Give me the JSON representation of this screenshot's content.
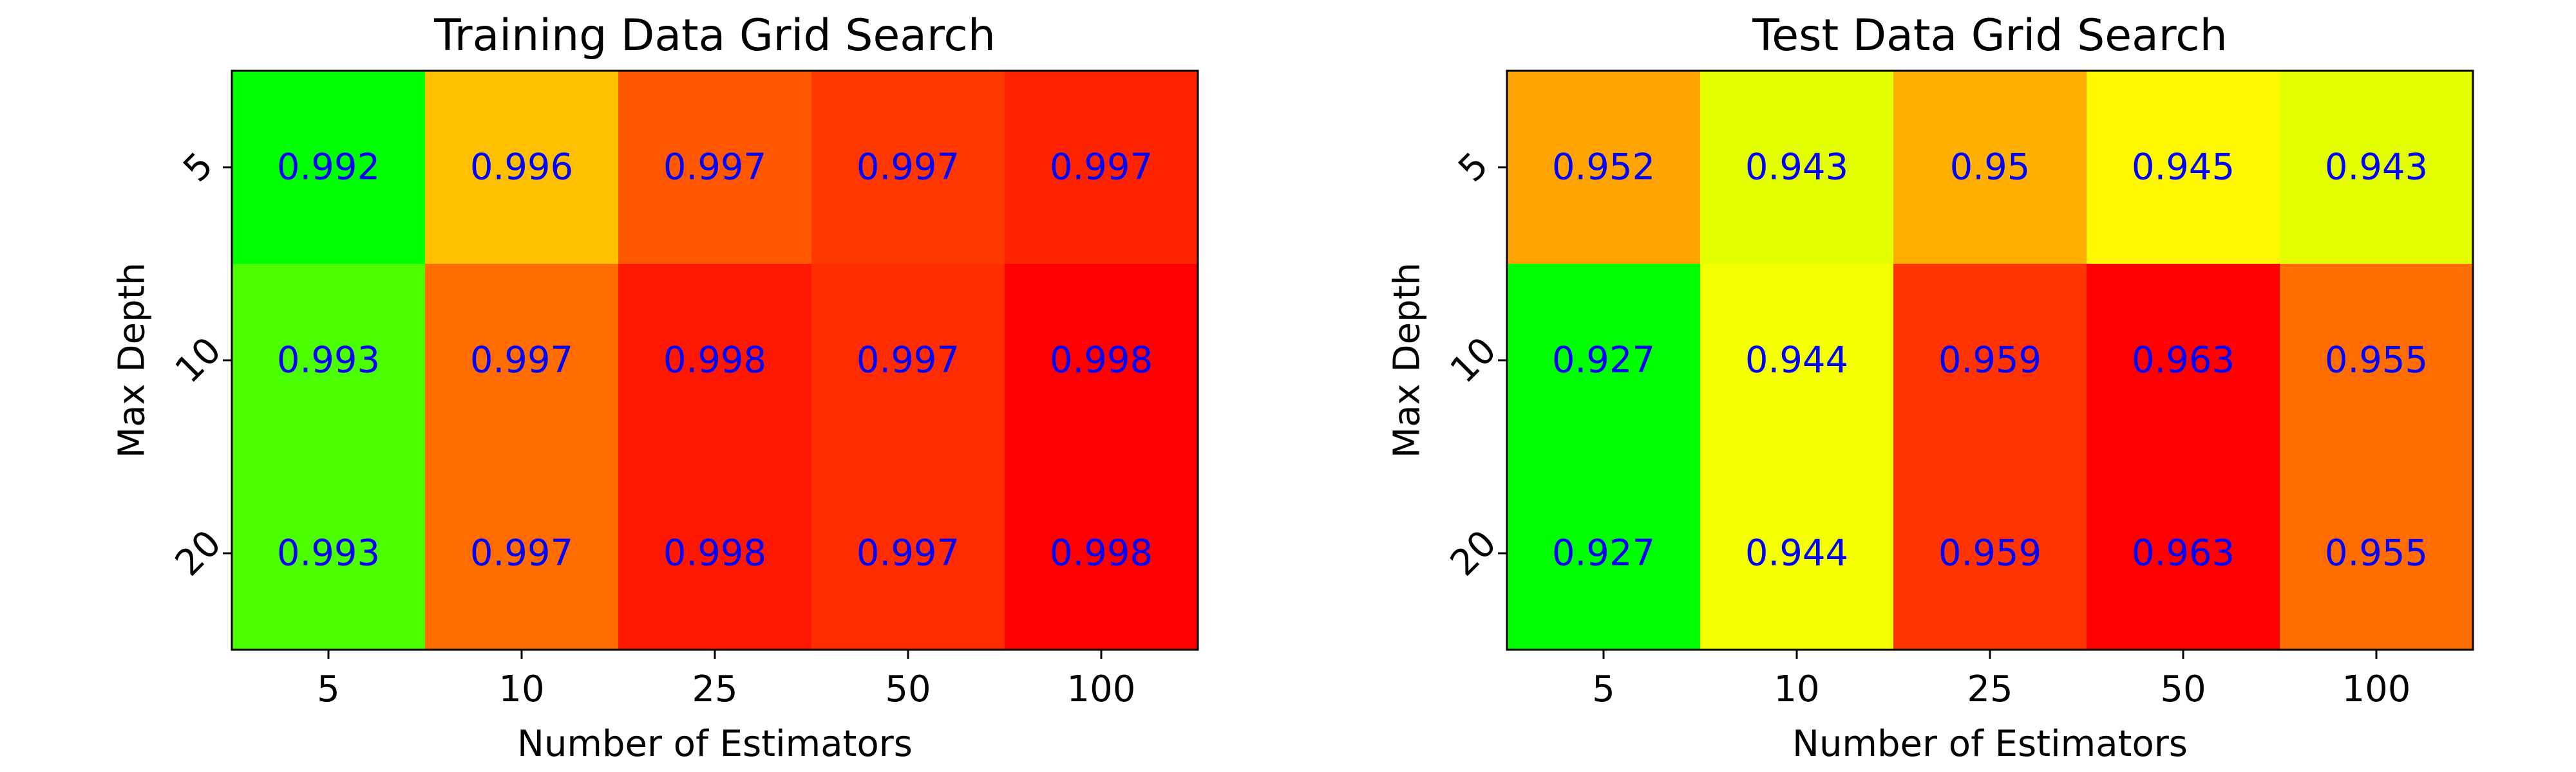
{
  "chart_data": [
    {
      "type": "heatmap",
      "title": "Training Data Grid Search",
      "xlabel": "Number of Estimators",
      "ylabel": "Max Depth",
      "x_categories": [
        "5",
        "10",
        "25",
        "50",
        "100"
      ],
      "y_categories": [
        "5",
        "10",
        "20"
      ],
      "values": [
        [
          0.992,
          0.996,
          0.997,
          0.997,
          0.997
        ],
        [
          0.993,
          0.997,
          0.998,
          0.997,
          0.998
        ],
        [
          0.993,
          0.997,
          0.998,
          0.997,
          0.998
        ]
      ],
      "cell_colors": [
        [
          "#00ff00",
          "#ffc000",
          "#ff5800",
          "#ff3800",
          "#ff2400"
        ],
        [
          "#4cff00",
          "#ff6c00",
          "#ff1800",
          "#ff2c00",
          "#ff0000"
        ],
        [
          "#4cff00",
          "#ff6c00",
          "#ff1800",
          "#ff2c00",
          "#ff0000"
        ]
      ],
      "colormap": "green-yellow-red",
      "value_label_color": "#0000ff"
    },
    {
      "type": "heatmap",
      "title": "Test Data Grid Search",
      "xlabel": "Number of Estimators",
      "ylabel": "Max Depth",
      "x_categories": [
        "5",
        "10",
        "25",
        "50",
        "100"
      ],
      "y_categories": [
        "5",
        "10",
        "20"
      ],
      "values": [
        [
          0.952,
          0.943,
          0.95,
          0.945,
          0.943
        ],
        [
          0.927,
          0.944,
          0.959,
          0.963,
          0.955
        ],
        [
          0.927,
          0.944,
          0.959,
          0.963,
          0.955
        ]
      ],
      "cell_colors": [
        [
          "#ffa400",
          "#e4ff00",
          "#ffb000",
          "#fff800",
          "#e4ff00"
        ],
        [
          "#00ff00",
          "#f4ff00",
          "#ff3400",
          "#ff0000",
          "#ff6c00"
        ],
        [
          "#00ff00",
          "#f4ff00",
          "#ff3400",
          "#ff0000",
          "#ff6c00"
        ]
      ],
      "colormap": "green-yellow-red",
      "value_label_color": "#0000ff"
    }
  ]
}
